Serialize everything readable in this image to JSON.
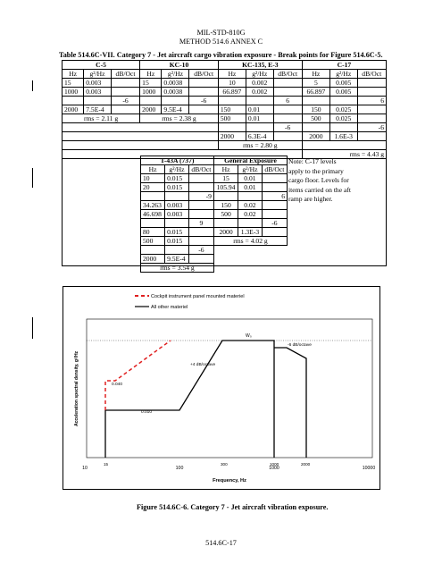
{
  "header": {
    "line1": "MIL-STD-810G",
    "line2": "METHOD 514.6 ANNEX C"
  },
  "table": {
    "caption": "Table 514.6C-VII.  Category 7 - Jet aircraft cargo vibration exposure - Break points for Figure 514.6C-5.",
    "col_hz": "Hz",
    "col_psd": "g²/Hz",
    "col_db": "dB/Oct",
    "c5": {
      "title": "C-5",
      "rows": [
        [
          "15",
          "0.003"
        ],
        [
          "1000",
          "0.003"
        ]
      ],
      "slope": "-6",
      "last": [
        "2000",
        "7.5E-4"
      ],
      "rms": "rms = 2.11 g"
    },
    "kc10": {
      "title": "KC-10",
      "rows": [
        [
          "15",
          "0.0038"
        ],
        [
          "1000",
          "0.0038"
        ]
      ],
      "slope": "-6",
      "last": [
        "2000",
        "9.5E-4"
      ],
      "rms": "rms = 2.38 g"
    },
    "kc135": {
      "title": "KC-135, E-3",
      "rows": [
        [
          "10",
          "0.002"
        ],
        [
          "66.897",
          "0.002"
        ]
      ],
      "slope1": "6",
      "mid": [
        [
          "150",
          "0.01"
        ],
        [
          "500",
          "0.01"
        ]
      ],
      "slope2": "-6",
      "last": [
        "2000",
        "6.3E-4"
      ],
      "rms": "rms = 2.80 g"
    },
    "c17": {
      "title": "C-17",
      "rows": [
        [
          "5",
          "0.005"
        ],
        [
          "66.897",
          "0.005"
        ]
      ],
      "slope1": "6",
      "mid": [
        [
          "150",
          "0.025"
        ],
        [
          "500",
          "0.025"
        ]
      ],
      "slope2": "-6",
      "last": [
        "2000",
        "1.6E-3"
      ],
      "rms": "rms = 4.43 g"
    },
    "t43": {
      "title": "T-43A (737)",
      "rows": [
        [
          "10",
          "0.015"
        ],
        [
          "20",
          "0.015"
        ]
      ],
      "slope1": "-9",
      "mid": [
        [
          "34.263",
          "0.003"
        ],
        [
          "46.698",
          "0.003"
        ]
      ],
      "slope2": "9",
      "mid2": [
        [
          "80",
          "0.015"
        ],
        [
          "500",
          "0.015"
        ]
      ],
      "slope3": "-6",
      "last": [
        "2000",
        "9.5E-4"
      ],
      "rms": "rms = 3.54 g"
    },
    "general": {
      "title": "General Exposure",
      "rows": [
        [
          "15",
          "0.01"
        ],
        [
          "105.94",
          "0.01"
        ]
      ],
      "slope1": "6",
      "mid": [
        [
          "150",
          "0.02"
        ],
        [
          "500",
          "0.02"
        ]
      ],
      "slope2": "-6",
      "last": [
        "2000",
        "1.3E-3"
      ],
      "rms": "rms = 4.02 g"
    },
    "note": [
      "Note: C-17 levels",
      "apply to the primary",
      "cargo floor.  Levels for",
      "items carried on the aft",
      "ramp are higher."
    ]
  },
  "figure": {
    "legend": [
      "Cockpit instrument panel mounted materiel",
      "All other materiel"
    ],
    "labels": {
      "w0": "W₀",
      "up": "+4 dB/octave",
      "down": "-6 dB/octave",
      "v1": "0.040",
      "v2": "0.010"
    },
    "freq_marks": [
      "15",
      "300",
      "1000",
      "2000"
    ],
    "x_ticks": [
      "10",
      "100",
      "1000",
      "10000"
    ],
    "xlabel": "Frequency, Hz",
    "ylabel": "Acceleration spectral density, g²/Hz",
    "caption": "Figure 514.6C-6.  Category 7 - Jet aircraft vibration exposure.",
    "series_colors": {
      "cockpit": "#e02020",
      "other": "#000000"
    }
  },
  "footer": {
    "page": "514.6C-17"
  }
}
